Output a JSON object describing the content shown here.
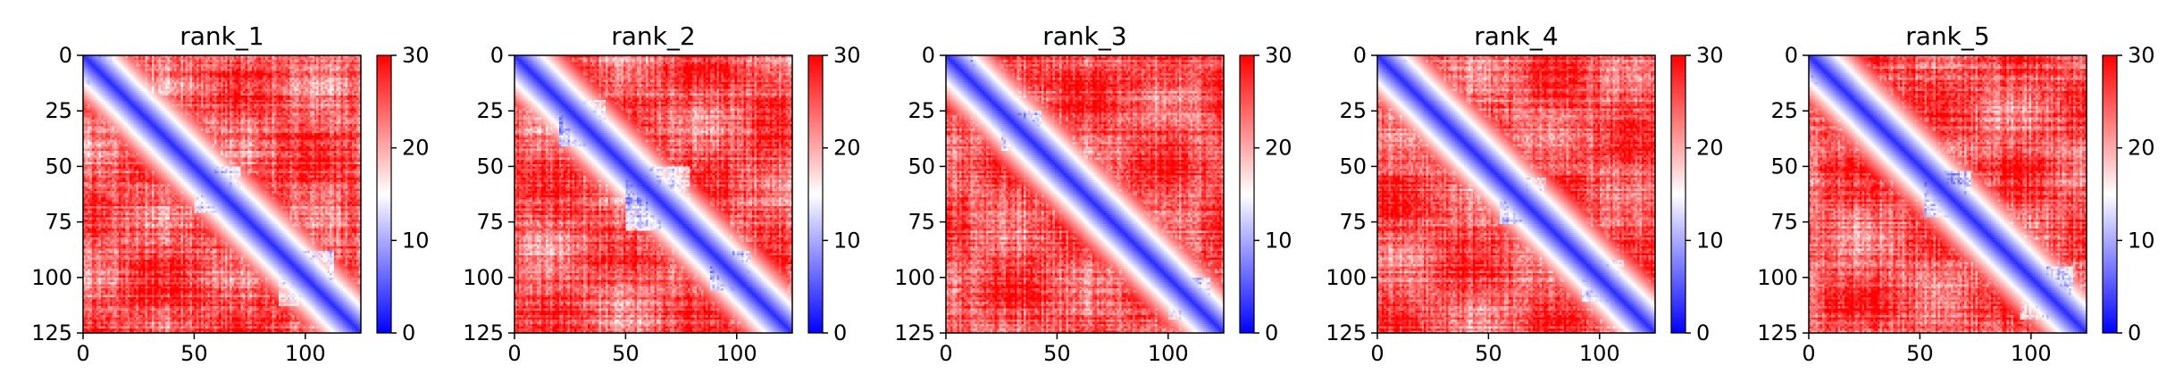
{
  "chart_data": [
    {
      "type": "heatmap",
      "title": "rank_1",
      "x_ticks": [
        0,
        50,
        100
      ],
      "y_ticks": [
        0,
        25,
        50,
        75,
        100,
        125
      ],
      "xlim": [
        0,
        125
      ],
      "ylim": [
        125,
        0
      ],
      "colorbar": {
        "min": 0,
        "max": 30,
        "ticks": [
          0,
          10,
          20,
          30
        ],
        "colormap": "bwr"
      },
      "low_error_blocks": [
        [
          0,
          12
        ],
        [
          50,
          70
        ],
        [
          88,
          112
        ]
      ]
    },
    {
      "type": "heatmap",
      "title": "rank_2",
      "x_ticks": [
        0,
        50,
        100
      ],
      "y_ticks": [
        0,
        25,
        50,
        75,
        100,
        125
      ],
      "xlim": [
        0,
        125
      ],
      "ylim": [
        125,
        0
      ],
      "colorbar": {
        "min": 0,
        "max": 30,
        "ticks": [
          0,
          10,
          20,
          30
        ],
        "colormap": "bwr"
      },
      "low_error_blocks": [
        [
          0,
          10
        ],
        [
          20,
          40
        ],
        [
          50,
          78
        ],
        [
          88,
          105
        ]
      ]
    },
    {
      "type": "heatmap",
      "title": "rank_3",
      "x_ticks": [
        0,
        50,
        100
      ],
      "y_ticks": [
        0,
        25,
        50,
        75,
        100,
        125
      ],
      "xlim": [
        0,
        125
      ],
      "ylim": [
        125,
        0
      ],
      "colorbar": {
        "min": 0,
        "max": 30,
        "ticks": [
          0,
          10,
          20,
          30
        ],
        "colormap": "bwr"
      },
      "low_error_blocks": [
        [
          0,
          12
        ],
        [
          25,
          42
        ],
        [
          100,
          118
        ]
      ]
    },
    {
      "type": "heatmap",
      "title": "rank_4",
      "x_ticks": [
        0,
        50,
        100
      ],
      "y_ticks": [
        0,
        25,
        50,
        75,
        100,
        125
      ],
      "xlim": [
        0,
        125
      ],
      "ylim": [
        125,
        0
      ],
      "colorbar": {
        "min": 0,
        "max": 30,
        "ticks": [
          0,
          10,
          20,
          30
        ],
        "colormap": "bwr"
      },
      "low_error_blocks": [
        [
          0,
          12
        ],
        [
          55,
          75
        ],
        [
          92,
          110
        ]
      ]
    },
    {
      "type": "heatmap",
      "title": "rank_5",
      "x_ticks": [
        0,
        50,
        100
      ],
      "y_ticks": [
        0,
        25,
        50,
        75,
        100,
        125
      ],
      "xlim": [
        0,
        125
      ],
      "ylim": [
        125,
        0
      ],
      "colorbar": {
        "min": 0,
        "max": 30,
        "ticks": [
          0,
          10,
          20,
          30
        ],
        "colormap": "bwr"
      },
      "low_error_blocks": [
        [
          0,
          12
        ],
        [
          52,
          72
        ],
        [
          95,
          118
        ]
      ]
    }
  ]
}
